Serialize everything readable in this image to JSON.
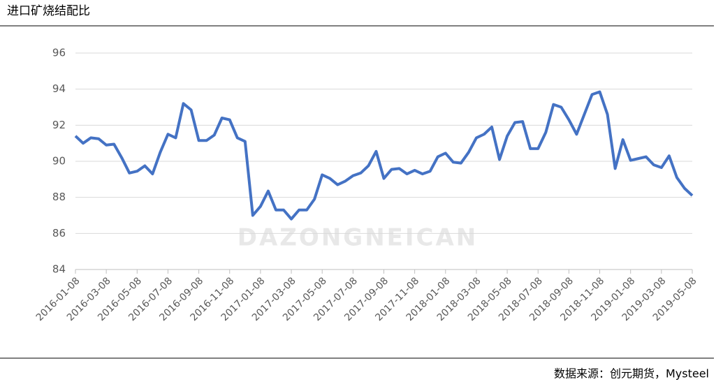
{
  "title": "进口矿烧结配比",
  "source": "数据来源：创元期货，Mysteel",
  "chart_data": {
    "type": "line",
    "watermark": "DAZONGNEICAN",
    "categories": [
      "2016-01-08",
      null,
      null,
      null,
      "2016-03-08",
      null,
      null,
      null,
      "2016-05-08",
      null,
      null,
      null,
      "2016-07-08",
      null,
      null,
      null,
      "2016-09-08",
      null,
      null,
      null,
      "2016-11-08",
      null,
      null,
      null,
      "2017-01-08",
      null,
      null,
      null,
      "2017-03-08",
      null,
      null,
      null,
      "2017-05-08",
      null,
      null,
      null,
      "2017-07-08",
      null,
      null,
      null,
      "2017-09-08",
      null,
      null,
      null,
      "2017-11-08",
      null,
      null,
      null,
      "2018-01-08",
      null,
      null,
      null,
      "2018-03-08",
      null,
      null,
      null,
      "2018-05-08",
      null,
      null,
      null,
      "2018-07-08",
      null,
      null,
      null,
      "2018-09-08",
      null,
      null,
      null,
      "2018-11-08",
      null,
      null,
      null,
      "2019-01-08",
      null,
      null,
      null,
      "2019-03-08",
      null,
      null,
      null,
      "2019-05-08"
    ],
    "values": [
      91.4,
      91.0,
      91.3,
      91.25,
      90.9,
      90.95,
      90.2,
      89.35,
      89.45,
      89.75,
      89.3,
      90.5,
      91.5,
      91.3,
      93.2,
      92.85,
      91.15,
      91.15,
      91.45,
      92.4,
      92.3,
      91.3,
      91.1,
      87.0,
      87.5,
      88.35,
      87.3,
      87.3,
      86.8,
      87.3,
      87.3,
      87.9,
      89.25,
      89.05,
      88.7,
      88.9,
      89.2,
      89.35,
      89.75,
      90.55,
      89.05,
      89.55,
      89.6,
      89.3,
      89.5,
      89.3,
      89.45,
      90.25,
      90.45,
      89.95,
      89.9,
      90.5,
      91.3,
      91.5,
      91.9,
      90.1,
      91.4,
      92.15,
      92.2,
      90.7,
      90.7,
      91.6,
      93.15,
      93.0,
      92.3,
      91.5,
      92.6,
      93.7,
      93.85,
      92.6,
      89.6,
      91.2,
      90.05,
      90.15,
      90.25,
      89.8,
      89.65,
      90.3,
      89.1,
      88.5,
      88.1
    ],
    "color": "#4472c4",
    "ylim": [
      84,
      96
    ],
    "yticks": [
      84,
      86,
      88,
      90,
      92,
      94,
      96
    ],
    "grid": true
  }
}
